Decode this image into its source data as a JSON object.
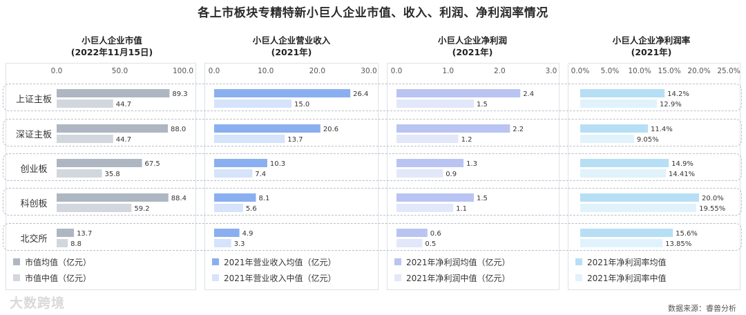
{
  "title": "各上市板块专精特新小巨人企业市值、收入、利润、净利润率情况",
  "rows": [
    "上证主板",
    "深证主板",
    "创业板",
    "科创板",
    "北交所"
  ],
  "source": "数据来源：睿兽分析",
  "watermark": "大数跨境",
  "chart_data": [
    {
      "type": "bar",
      "title_line1": "小巨人企业市值",
      "title_line2": "(2022年11月15日)",
      "ticks": [
        "0.0",
        "50.0",
        "100.0"
      ],
      "xlim": [
        0,
        100
      ],
      "categories": [
        "上证主板",
        "深证主板",
        "创业板",
        "科创板",
        "北交所"
      ],
      "series": [
        {
          "name": "市值均值（亿元）",
          "color": "#aeb6c2",
          "values": [
            89.3,
            88.0,
            67.5,
            88.4,
            13.7
          ],
          "labels": [
            "89.3",
            "88.0",
            "67.5",
            "88.4",
            "13.7"
          ]
        },
        {
          "name": "市值中值（亿元）",
          "color": "#d2d7de",
          "values": [
            44.7,
            44.7,
            35.8,
            59.2,
            8.8
          ],
          "labels": [
            "44.7",
            "44.7",
            "35.8",
            "59.2",
            "8.8"
          ]
        }
      ]
    },
    {
      "type": "bar",
      "title_line1": "小巨人企业营业收入",
      "title_line2": "(2021年)",
      "ticks": [
        "0.0",
        "10.0",
        "20.0",
        "30.0"
      ],
      "xlim": [
        0,
        30
      ],
      "categories": [
        "上证主板",
        "深证主板",
        "创业板",
        "科创板",
        "北交所"
      ],
      "series": [
        {
          "name": "2021年营业收入均值（亿元）",
          "color": "#8aaff0",
          "values": [
            26.4,
            20.6,
            10.3,
            8.1,
            4.9
          ],
          "labels": [
            "26.4",
            "20.6",
            "10.3",
            "8.1",
            "4.9"
          ]
        },
        {
          "name": "2021年营业收入中值（亿元）",
          "color": "#d5e3fb",
          "values": [
            15.0,
            13.7,
            7.4,
            5.6,
            3.3
          ],
          "labels": [
            "15.0",
            "13.7",
            "7.4",
            "5.6",
            "3.3"
          ]
        }
      ]
    },
    {
      "type": "bar",
      "title_line1": "小巨人企业净利润",
      "title_line2": "(2021年)",
      "ticks": [
        "0.0",
        "1.0",
        "2.0",
        "3.0"
      ],
      "xlim": [
        0,
        3
      ],
      "categories": [
        "上证主板",
        "深证主板",
        "创业板",
        "科创板",
        "北交所"
      ],
      "series": [
        {
          "name": "2021年净利润均值（亿元）",
          "color": "#bac4f2",
          "values": [
            2.4,
            2.2,
            1.3,
            1.5,
            0.6
          ],
          "labels": [
            "2.4",
            "2.2",
            "1.3",
            "1.5",
            "0.6"
          ]
        },
        {
          "name": "2021年净利润中值（亿元）",
          "color": "#e2e7f9",
          "values": [
            1.5,
            1.2,
            0.9,
            1.1,
            0.5
          ],
          "labels": [
            "1.5",
            "1.2",
            "0.9",
            "1.1",
            "0.5"
          ]
        }
      ]
    },
    {
      "type": "bar",
      "title_line1": "小巨人企业净利润率",
      "title_line2": "(2021年)",
      "ticks": [
        "0.0%",
        "5.0%",
        "10.0%",
        "15.0%",
        "20.0%",
        "25.0%"
      ],
      "xlim": [
        0,
        25
      ],
      "categories": [
        "上证主板",
        "深证主板",
        "创业板",
        "科创板",
        "北交所"
      ],
      "series": [
        {
          "name": "2021年净利润率均值",
          "color": "#b6dff5",
          "values": [
            14.2,
            11.4,
            14.9,
            20.0,
            15.6
          ],
          "labels": [
            "14.2%",
            "11.4%",
            "14.9%",
            "20.0%",
            "15.6%"
          ]
        },
        {
          "name": "2021年净利润率中值",
          "color": "#e0f2fb",
          "values": [
            12.9,
            9.05,
            14.41,
            19.55,
            13.85
          ],
          "labels": [
            "12.9%",
            "9.05%",
            "14.41%",
            "19.55%",
            "13.85%"
          ]
        }
      ]
    }
  ]
}
